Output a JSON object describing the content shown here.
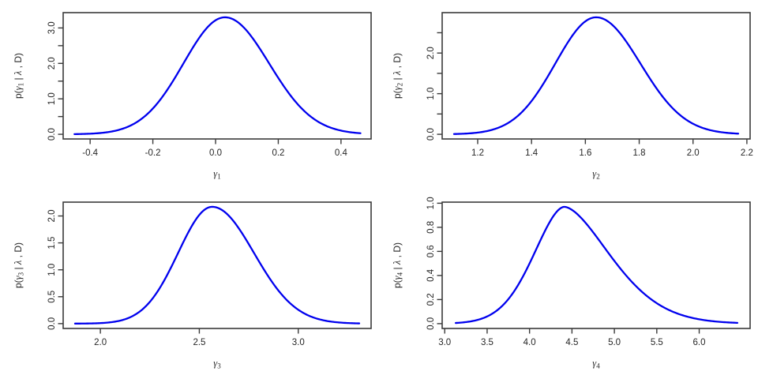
{
  "figure": {
    "background": "#ffffff",
    "curve_color": "#0000EE",
    "axis_color": "#3a3a3a",
    "text_color": "#262626",
    "rows": 2,
    "cols": 2
  },
  "chart_data": [
    {
      "type": "line",
      "id": "gamma1",
      "title": "",
      "xlabel": {
        "base": "γ",
        "sub": "1"
      },
      "ylabel": {
        "p_open": "p(",
        "gamma": "γ",
        "sub": "1",
        "mid": " | ",
        "lambda": "λ",
        "close": " , D)"
      },
      "x_usr": [
        -0.486,
        0.496
      ],
      "y_usr": [
        -0.132,
        3.432
      ],
      "x_ticks": [
        {
          "v": -0.4,
          "label": "-0.4"
        },
        {
          "v": -0.2,
          "label": "-0.2"
        },
        {
          "v": 0.0,
          "label": "0.0"
        },
        {
          "v": 0.2,
          "label": "0.2"
        },
        {
          "v": 0.4,
          "label": "0.4"
        }
      ],
      "y_ticks": [
        {
          "v": 0.0,
          "label": "0.0"
        },
        {
          "v": 0.5,
          "label": ""
        },
        {
          "v": 1.0,
          "label": "1.0"
        },
        {
          "v": 1.5,
          "label": ""
        },
        {
          "v": 2.0,
          "label": "2.0"
        },
        {
          "v": 2.5,
          "label": ""
        },
        {
          "v": 3.0,
          "label": "3.0"
        }
      ],
      "density": {
        "mode": 0.03,
        "peak": 3.3,
        "s_left": 0.187,
        "p_left": 2.0,
        "s_right": 0.199,
        "p_right": 2.0,
        "x_min": -0.45,
        "x_max": 0.462
      }
    },
    {
      "type": "line",
      "id": "gamma2",
      "title": "",
      "xlabel": {
        "base": "γ",
        "sub": "2"
      },
      "ylabel": {
        "p_open": "p(",
        "gamma": "γ",
        "sub": "2",
        "mid": " | ",
        "lambda": "λ",
        "close": " , D)"
      },
      "x_usr": [
        1.068,
        2.212
      ],
      "y_usr": [
        -0.115,
        2.995
      ],
      "x_ticks": [
        {
          "v": 1.2,
          "label": "1.2"
        },
        {
          "v": 1.4,
          "label": "1.4"
        },
        {
          "v": 1.6,
          "label": "1.6"
        },
        {
          "v": 1.8,
          "label": "1.8"
        },
        {
          "v": 2.0,
          "label": "2.0"
        },
        {
          "v": 2.2,
          "label": "2.2"
        }
      ],
      "y_ticks": [
        {
          "v": 0.0,
          "label": "0.0"
        },
        {
          "v": 0.5,
          "label": ""
        },
        {
          "v": 1.0,
          "label": "1.0"
        },
        {
          "v": 1.5,
          "label": ""
        },
        {
          "v": 2.0,
          "label": "2.0"
        },
        {
          "v": 2.5,
          "label": ""
        }
      ],
      "density": {
        "mode": 1.64,
        "peak": 2.88,
        "s_left": 0.214,
        "p_left": 2.0,
        "s_right": 0.232,
        "p_right": 2.0,
        "x_min": 1.112,
        "x_max": 2.168
      }
    },
    {
      "type": "line",
      "id": "gamma3",
      "title": "",
      "xlabel": {
        "base": "γ",
        "sub": "3"
      },
      "ylabel": {
        "p_open": "p(",
        "gamma": "γ",
        "sub": "3",
        "mid": " | ",
        "lambda": "λ",
        "close": " , D)"
      },
      "x_usr": [
        1.812,
        3.368
      ],
      "y_usr": [
        -0.09,
        2.257
      ],
      "x_ticks": [
        {
          "v": 2.0,
          "label": "2.0"
        },
        {
          "v": 2.5,
          "label": "2.5"
        },
        {
          "v": 3.0,
          "label": "3.0"
        }
      ],
      "y_ticks": [
        {
          "v": 0.0,
          "label": "0.0"
        },
        {
          "v": 0.5,
          "label": "0.5"
        },
        {
          "v": 1.0,
          "label": "1.0"
        },
        {
          "v": 1.5,
          "label": "1.5"
        },
        {
          "v": 2.0,
          "label": "2.0"
        }
      ],
      "density": {
        "mode": 2.565,
        "peak": 2.17,
        "s_left": 0.243,
        "p_left": 2.0,
        "s_right": 0.298,
        "p_right": 2.0,
        "x_min": 1.872,
        "x_max": 3.308
      }
    },
    {
      "type": "line",
      "id": "gamma4",
      "title": "",
      "xlabel": {
        "base": "γ",
        "sub": "4"
      },
      "ylabel": {
        "p_open": "p(",
        "gamma": "γ",
        "sub": "4",
        "mid": " | ",
        "lambda": "λ",
        "close": " , D)"
      },
      "x_usr": [
        2.97,
        6.6
      ],
      "y_usr": [
        -0.04,
        1.009
      ],
      "x_ticks": [
        {
          "v": 3.0,
          "label": "3.0"
        },
        {
          "v": 3.5,
          "label": "3.5"
        },
        {
          "v": 4.0,
          "label": "4.0"
        },
        {
          "v": 4.5,
          "label": "4.5"
        },
        {
          "v": 5.0,
          "label": "5.0"
        },
        {
          "v": 5.5,
          "label": "5.5"
        },
        {
          "v": 6.0,
          "label": "6.0"
        }
      ],
      "y_ticks": [
        {
          "v": 0.0,
          "label": "0.0"
        },
        {
          "v": 0.2,
          "label": "0.2"
        },
        {
          "v": 0.4,
          "label": "0.4"
        },
        {
          "v": 0.6,
          "label": "0.6"
        },
        {
          "v": 0.8,
          "label": "0.8"
        },
        {
          "v": 1.0,
          "label": "1.0"
        }
      ],
      "density": {
        "mode": 4.41,
        "peak": 0.97,
        "s_left": 0.515,
        "p_left": 1.8,
        "s_right": 0.783,
        "p_right": 1.68,
        "x_min": 3.13,
        "x_max": 6.45
      }
    }
  ]
}
